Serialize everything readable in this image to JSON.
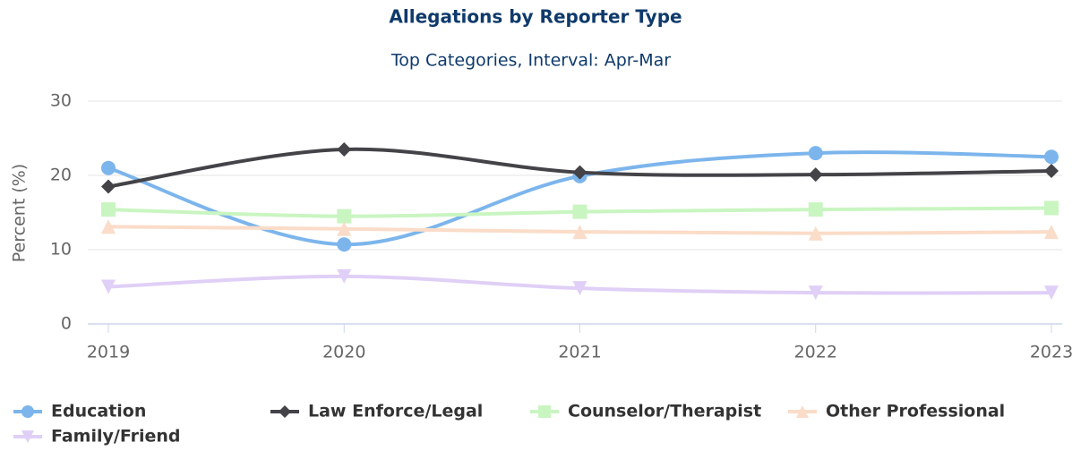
{
  "chart_data": {
    "type": "spline",
    "title": "Allegations by Reporter Type",
    "subtitle": "Top Categories, Interval: Apr-Mar",
    "y_label": "Percent (%)",
    "categories": [
      "2019",
      "2020",
      "2021",
      "2022",
      "2023"
    ],
    "ylim": [
      0,
      30
    ],
    "yticks": [
      0,
      10,
      20,
      30
    ],
    "grid": true,
    "legend": "bottom",
    "series": [
      {
        "name": "Education",
        "color": "#7cb5ec",
        "marker": "circle",
        "values": [
          21,
          10.7,
          19.9,
          23,
          22.5
        ]
      },
      {
        "name": "Law Enforce/Legal",
        "color": "#434348",
        "marker": "diamond",
        "values": [
          18.5,
          23.5,
          20.4,
          20.1,
          20.6
        ]
      },
      {
        "name": "Counselor/Therapist",
        "color": "#c9f5c1",
        "marker": "square",
        "values": [
          15.4,
          14.5,
          15.1,
          15.4,
          15.6
        ]
      },
      {
        "name": "Other Professional",
        "color": "#fadcc8",
        "marker": "triangle",
        "values": [
          13.1,
          12.8,
          12.4,
          12.2,
          12.4
        ]
      },
      {
        "name": "Family/Friend",
        "color": "#e0cff6",
        "marker": "triangle-down",
        "values": [
          5.0,
          6.4,
          4.8,
          4.2,
          4.2
        ]
      }
    ]
  }
}
